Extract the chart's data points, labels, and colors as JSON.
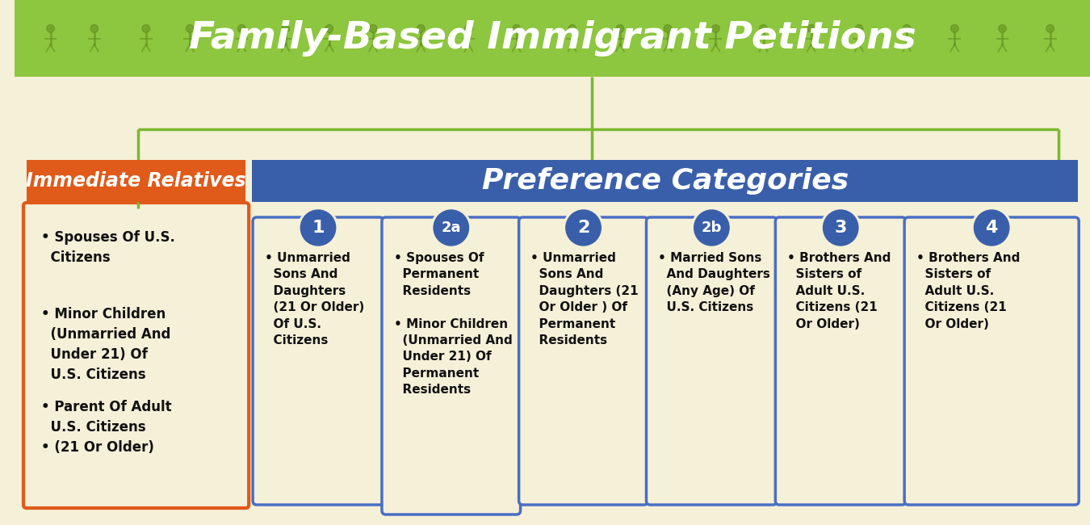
{
  "title": "Family-Based Immigrant Petitions",
  "header_bg": "#8dc63f",
  "content_bg": "#f5f0d8",
  "orange_color": "#e05a1a",
  "blue_dark": "#3a5faa",
  "blue_medium": "#4a6ec4",
  "blue_circle": "#3a5faa",
  "green_line": "#7ab82e",
  "white": "#ffffff",
  "black": "#111111",
  "immediate_title": "Immediate Relatives",
  "preference_title": "Preference Categories",
  "cat_numbers": [
    "1",
    "2a",
    "2",
    "2b",
    "3",
    "4"
  ],
  "cat_texts": [
    "• Unmarried\n  Sons And\n  Daughters\n  (21 Or Older)\n  Of U.S.\n  Citizens",
    "• Spouses Of\n  Permanent\n  Residents\n\n• Minor Children\n  (Unmarried And\n  Under 21) Of\n  Permanent\n  Residents",
    "• Unmarried\n  Sons And\n  Daughters (21\n  Or Older ) Of\n  Permanent\n  Residents",
    "• Married Sons\n  And Daughters\n  (Any Age) Of\n  U.S. Citizens",
    "• Brothers And\n  Sisters of\n  Adult U.S.\n  Citizens (21\n  Or Older)",
    "• Brothers And\n  Sisters of\n  Adult U.S.\n  Citizens (21\n  Or Older)"
  ],
  "imm_bullets": [
    "• Spouses Of U.S.\n  Citizens",
    "• Minor Children\n  (Unmarried And\n  Under 21) Of\n  U.S. Citizens",
    "• Parent Of Adult\n  U.S. Citizens\n• (21 Or Older)"
  ]
}
